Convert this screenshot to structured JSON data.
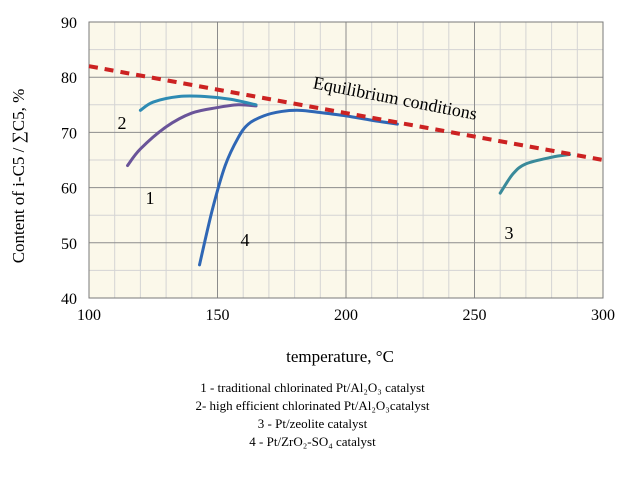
{
  "chart_data": {
    "type": "line",
    "xlabel": "temperature, °C",
    "ylabel": "Content of i-C5 / ∑C5, %",
    "xlim": [
      100,
      300
    ],
    "ylim": [
      40,
      90
    ],
    "x_ticks": [
      "100",
      "150",
      "200",
      "250",
      "300"
    ],
    "y_ticks": [
      "40",
      "50",
      "60",
      "70",
      "80",
      "90"
    ],
    "grid": "major and minor",
    "series": [
      {
        "name": "1",
        "label": "1",
        "color": "#6a5499",
        "x": [
          115,
          120,
          130,
          140,
          150,
          158,
          165
        ],
        "y": [
          64,
          67,
          71,
          73.5,
          74.5,
          75,
          74.8
        ]
      },
      {
        "name": "2",
        "label": "2",
        "color": "#2e8bb3",
        "x": [
          120,
          125,
          135,
          145,
          155,
          165
        ],
        "y": [
          74,
          75.5,
          76.5,
          76.5,
          76,
          75
        ]
      },
      {
        "name": "3",
        "label": "3",
        "color": "#3a8a9a",
        "x": [
          260,
          265,
          270,
          280,
          287
        ],
        "y": [
          59,
          62.5,
          64.3,
          65.5,
          66
        ]
      },
      {
        "name": "4",
        "label": "4",
        "color": "#2f67b5",
        "x": [
          143,
          148,
          153,
          158,
          162,
          168,
          175,
          182,
          190,
          200,
          210,
          220
        ],
        "y": [
          46,
          56,
          64,
          69,
          71.5,
          73,
          73.8,
          74,
          73.6,
          73,
          72.2,
          71.5
        ]
      },
      {
        "name": "Equilibrium conditions",
        "label": "Equilibrium conditions",
        "color": "#cc2222",
        "dashed": true,
        "x": [
          100,
          300
        ],
        "y": [
          82,
          65
        ]
      }
    ]
  },
  "legend_lines": [
    "1 - traditional chlorinated Pt/Al₂O₃ catalyst",
    "2- high efficient chlorinated Pt/Al₂O₃catalyst",
    "3 - Pt/zeolite catalyst",
    "4 - Pt/ZrO₂-SO₄ catalyst"
  ],
  "colors": {
    "plot_background": "#fbf8ea",
    "grid_major": "#8c8c8c",
    "grid_minor": "#d4d4d4"
  }
}
